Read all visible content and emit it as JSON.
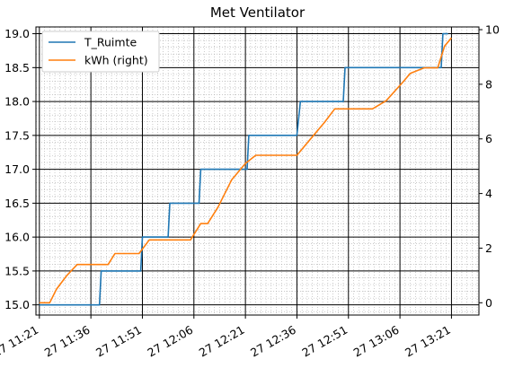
{
  "chart_data": {
    "type": "line",
    "title": "Met Ventilator",
    "xlabel": "",
    "ylabel": "",
    "grid": {
      "major": true,
      "minor": true
    },
    "legend_position": "top-left",
    "x_tick_labels": [
      "27 11:21",
      "27 11:36",
      "27 11:51",
      "27 12:06",
      "27 12:21",
      "27 12:36",
      "27 12:51",
      "27 13:06",
      "27 13:21"
    ],
    "x_tick_minutes": [
      0,
      15,
      30,
      45,
      60,
      75,
      90,
      105,
      120
    ],
    "x_range_minutes": [
      -1,
      128
    ],
    "y_left": {
      "ticks": [
        15.0,
        15.5,
        16.0,
        16.5,
        17.0,
        17.5,
        18.0,
        18.5,
        19.0
      ],
      "tick_labels": [
        "15.0",
        "15.5",
        "16.0",
        "16.5",
        "17.0",
        "17.5",
        "18.0",
        "18.5",
        "19.0"
      ],
      "range": [
        14.85,
        19.1
      ]
    },
    "y_right": {
      "ticks": [
        0,
        2,
        4,
        6,
        8,
        10
      ],
      "tick_labels": [
        "0",
        "2",
        "4",
        "6",
        "8",
        "10"
      ],
      "range": [
        -0.45,
        10.1
      ]
    },
    "series": [
      {
        "name": "T_Ruimte",
        "axis": "left",
        "color": "#1f77b4",
        "x": [
          0,
          17.5,
          18,
          29.5,
          30,
          37.5,
          38,
          45,
          46.5,
          47,
          60.5,
          61,
          75,
          76,
          88.5,
          89,
          117,
          117.5,
          119
        ],
        "y": [
          15.0,
          15.0,
          15.5,
          15.5,
          16.0,
          16.0,
          16.5,
          16.5,
          16.5,
          17.0,
          17.0,
          17.5,
          17.5,
          18.0,
          18.0,
          18.5,
          18.5,
          19.0,
          19.0
        ]
      },
      {
        "name": "kWh (right)",
        "axis": "right",
        "color": "#ff7f0e",
        "x": [
          0,
          3,
          5,
          8,
          11,
          15,
          20,
          22,
          29,
          32,
          44,
          47,
          49,
          52,
          56,
          60,
          63,
          68,
          75,
          79,
          83,
          86,
          97,
          101,
          106,
          108,
          112,
          116,
          118,
          120
        ],
        "y": [
          0,
          0,
          0.5,
          1.0,
          1.4,
          1.4,
          1.4,
          1.8,
          1.8,
          2.3,
          2.3,
          2.9,
          2.9,
          3.5,
          4.5,
          5.1,
          5.4,
          5.4,
          5.4,
          6.0,
          6.6,
          7.1,
          7.1,
          7.4,
          8.1,
          8.4,
          8.6,
          8.6,
          9.4,
          9.7
        ]
      }
    ]
  }
}
